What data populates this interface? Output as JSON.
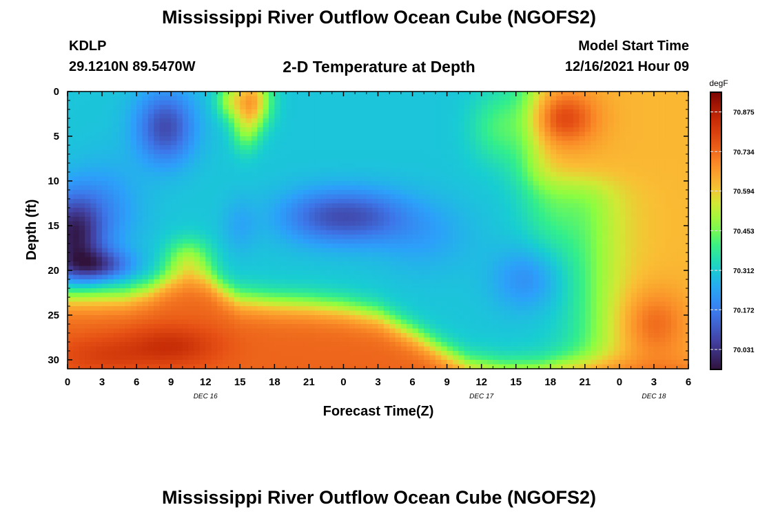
{
  "header": {
    "title": "Mississippi River Outflow Ocean Cube (NGOFS2)",
    "station": "KDLP",
    "coords": "29.1210N  89.5470W",
    "subtitle": "2-D Temperature at Depth",
    "start_label": "Model Start Time",
    "start_value": "12/16/2021 Hour 09"
  },
  "footer": {
    "title": "Mississippi River Outflow Ocean Cube (NGOFS2)"
  },
  "chart_data": {
    "type": "heatmap",
    "xlabel": "Forecast Time(Z)",
    "ylabel": "Depth (ft)",
    "x_unit": "forecast hour since 12/16/2021 00Z",
    "xlim": [
      0,
      54
    ],
    "ylim": [
      0,
      31
    ],
    "x_ticks": [
      0,
      3,
      6,
      9,
      12,
      15,
      18,
      21,
      24,
      27,
      30,
      33,
      36,
      39,
      42,
      45,
      48,
      51,
      54
    ],
    "x_tick_labels": [
      "0",
      "3",
      "6",
      "9",
      "12",
      "15",
      "18",
      "21",
      "0",
      "3",
      "6",
      "9",
      "12",
      "15",
      "18",
      "21",
      "0",
      "3",
      "6"
    ],
    "y_ticks": [
      0,
      5,
      10,
      15,
      20,
      25,
      30
    ],
    "y_tick_labels": [
      "0",
      "5",
      "10",
      "15",
      "20",
      "25",
      "30"
    ],
    "date_labels": [
      {
        "label": "DEC 16",
        "x": 12
      },
      {
        "label": "DEC 17",
        "x": 36
      },
      {
        "label": "DEC 18",
        "x": 51
      }
    ],
    "colorbar": {
      "unit": "degF",
      "min": 69.96,
      "max": 70.945,
      "ticks": [
        70.875,
        70.734,
        70.594,
        70.453,
        70.312,
        70.172,
        70.031
      ],
      "tick_labels": [
        "70.875",
        "70.734",
        "70.594",
        "70.453",
        "70.312",
        "70.172",
        "70.031"
      ]
    },
    "field": {
      "base": 70.3,
      "features": [
        {
          "x": 0.5,
          "y": 16,
          "sx": 2.5,
          "sy": 4.5,
          "v": -0.3
        },
        {
          "x": 2.5,
          "y": 19.5,
          "sx": 3,
          "sy": 1.8,
          "v": -0.22
        },
        {
          "x": 8.5,
          "y": 4,
          "sx": 2.5,
          "sy": 4,
          "v": -0.22
        },
        {
          "x": 3.5,
          "y": 13,
          "sx": 3,
          "sy": 5,
          "v": -0.08
        },
        {
          "x": 22,
          "y": 14,
          "sx": 4,
          "sy": 3,
          "v": -0.14
        },
        {
          "x": 26,
          "y": 14,
          "sx": 4,
          "sy": 3,
          "v": -0.14
        },
        {
          "x": 31,
          "y": 16,
          "sx": 4,
          "sy": 4,
          "v": -0.06
        },
        {
          "x": 40,
          "y": 21,
          "sx": 3,
          "sy": 3.5,
          "v": -0.1
        },
        {
          "x": 15,
          "y": 15,
          "sx": 1.5,
          "sy": 3,
          "v": -0.05
        },
        {
          "x": 16,
          "y": 1,
          "sx": 1.6,
          "sy": 3,
          "v": 0.34
        },
        {
          "x": 15.5,
          "y": 4.5,
          "sx": 1.2,
          "sy": 2.5,
          "v": 0.12
        },
        {
          "x": 14,
          "y": 1,
          "sx": 1.2,
          "sy": 2,
          "v": 0.14
        },
        {
          "x": 10.5,
          "y": 19,
          "sx": 2,
          "sy": 2.5,
          "v": 0.18
        },
        {
          "x": 37.5,
          "y": 4,
          "sx": 2.5,
          "sy": 4,
          "v": 0.1
        },
        {
          "x": 42.5,
          "y": 12,
          "sx": 3,
          "sy": 6,
          "v": 0.1
        }
      ],
      "regions": [
        {
          "type": "topright",
          "x0": 40.5,
          "y1": 10.3,
          "wx": 1.0,
          "wy": 1.0,
          "v": 70.64
        },
        {
          "type": "rightcol",
          "x0": 46,
          "wx": 1.6,
          "v": 70.62
        },
        {
          "type": "bottom",
          "v": 70.74
        }
      ],
      "hot_spots": [
        {
          "x": 43,
          "y": 3,
          "sx": 3,
          "sy": 3,
          "v": 0.16
        },
        {
          "x": 9,
          "y": 28.5,
          "sx": 4,
          "sy": 2.2,
          "v": 0.1
        },
        {
          "x": 3,
          "y": 29.5,
          "sx": 4,
          "sy": 2,
          "v": 0.06
        },
        {
          "x": 51,
          "y": 26,
          "sx": 3,
          "sy": 4,
          "v": 0.12
        }
      ],
      "bottom_boundary": [
        [
          0,
          23.0
        ],
        [
          2,
          23.0
        ],
        [
          5,
          22.9
        ],
        [
          7,
          22.2
        ],
        [
          9,
          20.9
        ],
        [
          10.5,
          20.2
        ],
        [
          12,
          20.6
        ],
        [
          13.5,
          22.1
        ],
        [
          15,
          23.2
        ],
        [
          18,
          23.6
        ],
        [
          21,
          23.8
        ],
        [
          24,
          24.2
        ],
        [
          27,
          25.0
        ],
        [
          30,
          27.0
        ],
        [
          33,
          29.3
        ],
        [
          35,
          30.6
        ],
        [
          38,
          31.2
        ],
        [
          41,
          31.2
        ],
        [
          43,
          30.8
        ],
        [
          45,
          30.6
        ],
        [
          46,
          30.5
        ],
        [
          54,
          30.5
        ]
      ]
    }
  }
}
